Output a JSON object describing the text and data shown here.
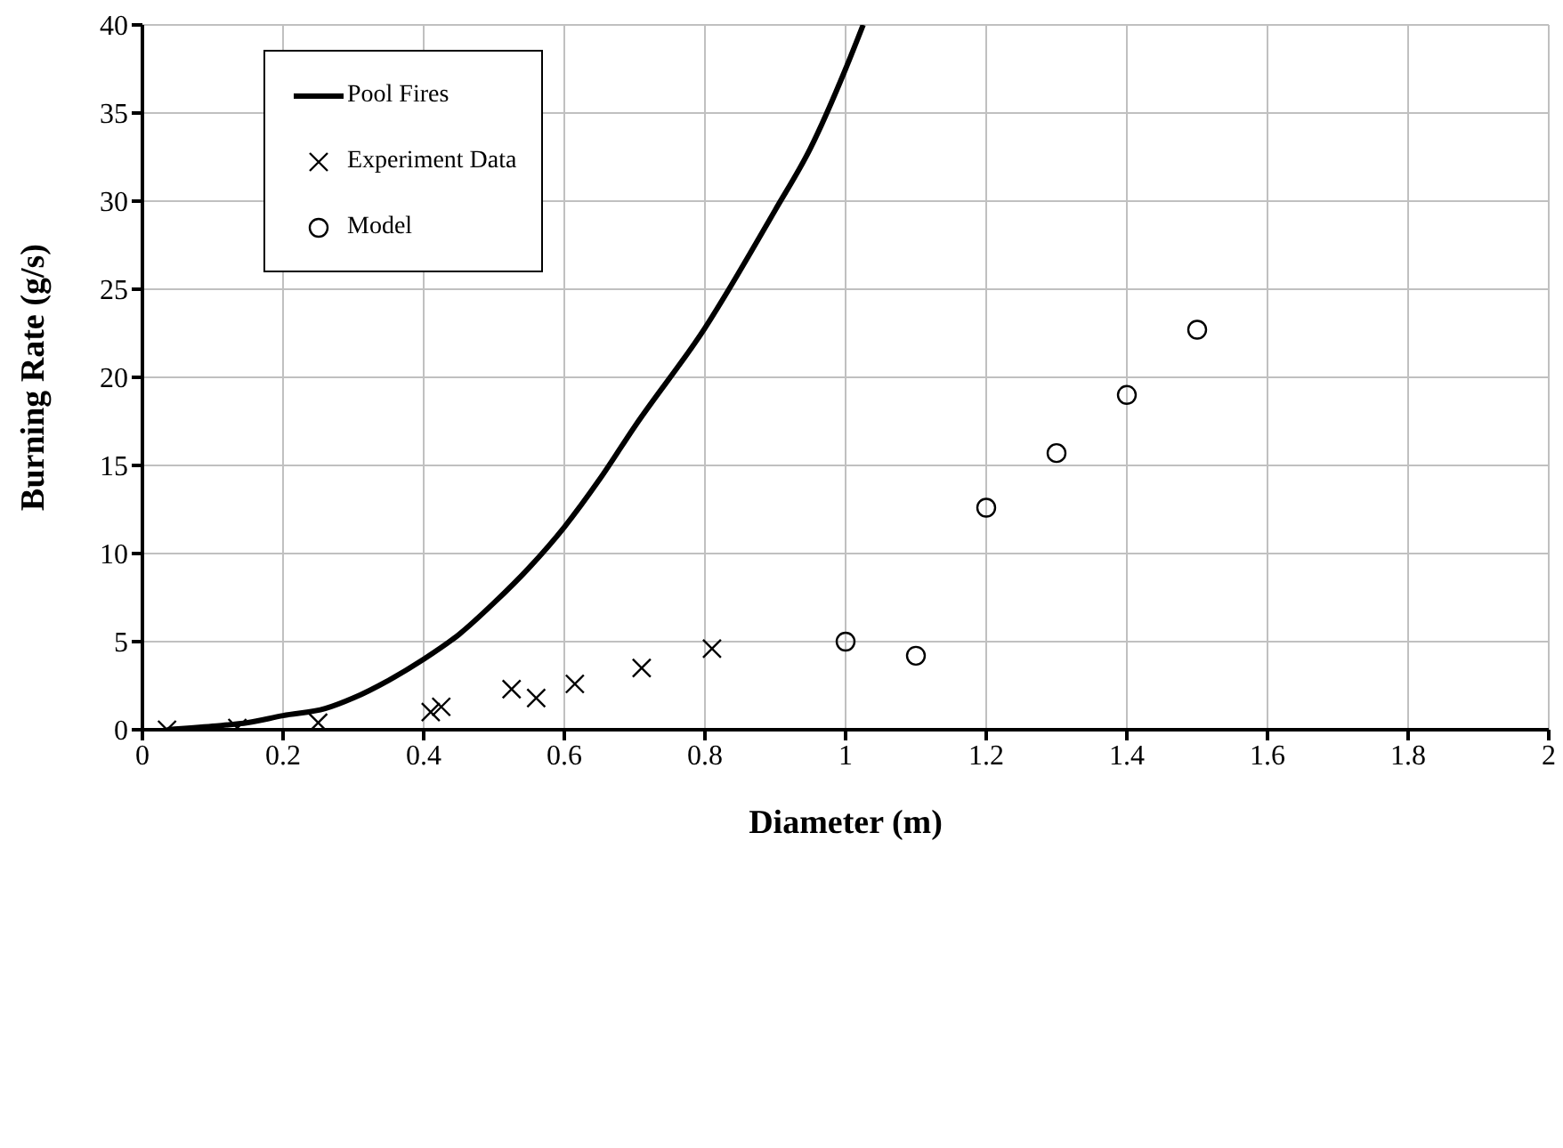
{
  "chart_data": {
    "type": "line",
    "xlabel": "Diameter (m)",
    "ylabel": "Burning Rate (g/s)",
    "xlim": [
      0,
      2
    ],
    "ylim": [
      0,
      40
    ],
    "xticks": [
      0,
      0.2,
      0.4,
      0.6,
      0.8,
      1,
      1.2,
      1.4,
      1.6,
      1.8,
      2
    ],
    "yticks": [
      0,
      5,
      10,
      15,
      20,
      25,
      30,
      35,
      40
    ],
    "grid": true,
    "legend": "top left",
    "series": [
      {
        "name": "Pool Fires",
        "color": "#000000",
        "marker": "none",
        "line_style": "solid",
        "x": [
          0.035,
          0.1,
          0.15,
          0.2,
          0.26,
          0.3,
          0.35,
          0.4,
          0.45,
          0.5,
          0.55,
          0.6,
          0.65,
          0.7,
          0.8,
          0.9,
          0.95,
          1.0,
          1.025
        ],
        "values": [
          0,
          0.2,
          0.4,
          0.8,
          1.2,
          1.8,
          2.8,
          4.0,
          5.4,
          7.2,
          9.2,
          11.5,
          14.2,
          17.2,
          22.8,
          29.5,
          33,
          37.5,
          40
        ]
      },
      {
        "name": "Experiment Data",
        "type": "scatter",
        "color": "#000000",
        "marker": "cross",
        "x": [
          0.035,
          0.135,
          0.25,
          0.41,
          0.425,
          0.525,
          0.56,
          0.615,
          0.71,
          0.81
        ],
        "values": [
          0,
          0.1,
          0.4,
          1.0,
          1.3,
          2.3,
          1.8,
          2.6,
          3.5,
          4.6
        ]
      },
      {
        "name": "Model",
        "type": "scatter",
        "color": "#000000",
        "marker": "circle",
        "x": [
          1.0,
          1.1,
          1.2,
          1.3,
          1.4,
          1.5
        ],
        "values": [
          5.0,
          4.2,
          12.6,
          15.7,
          19.0,
          22.7
        ]
      }
    ]
  }
}
